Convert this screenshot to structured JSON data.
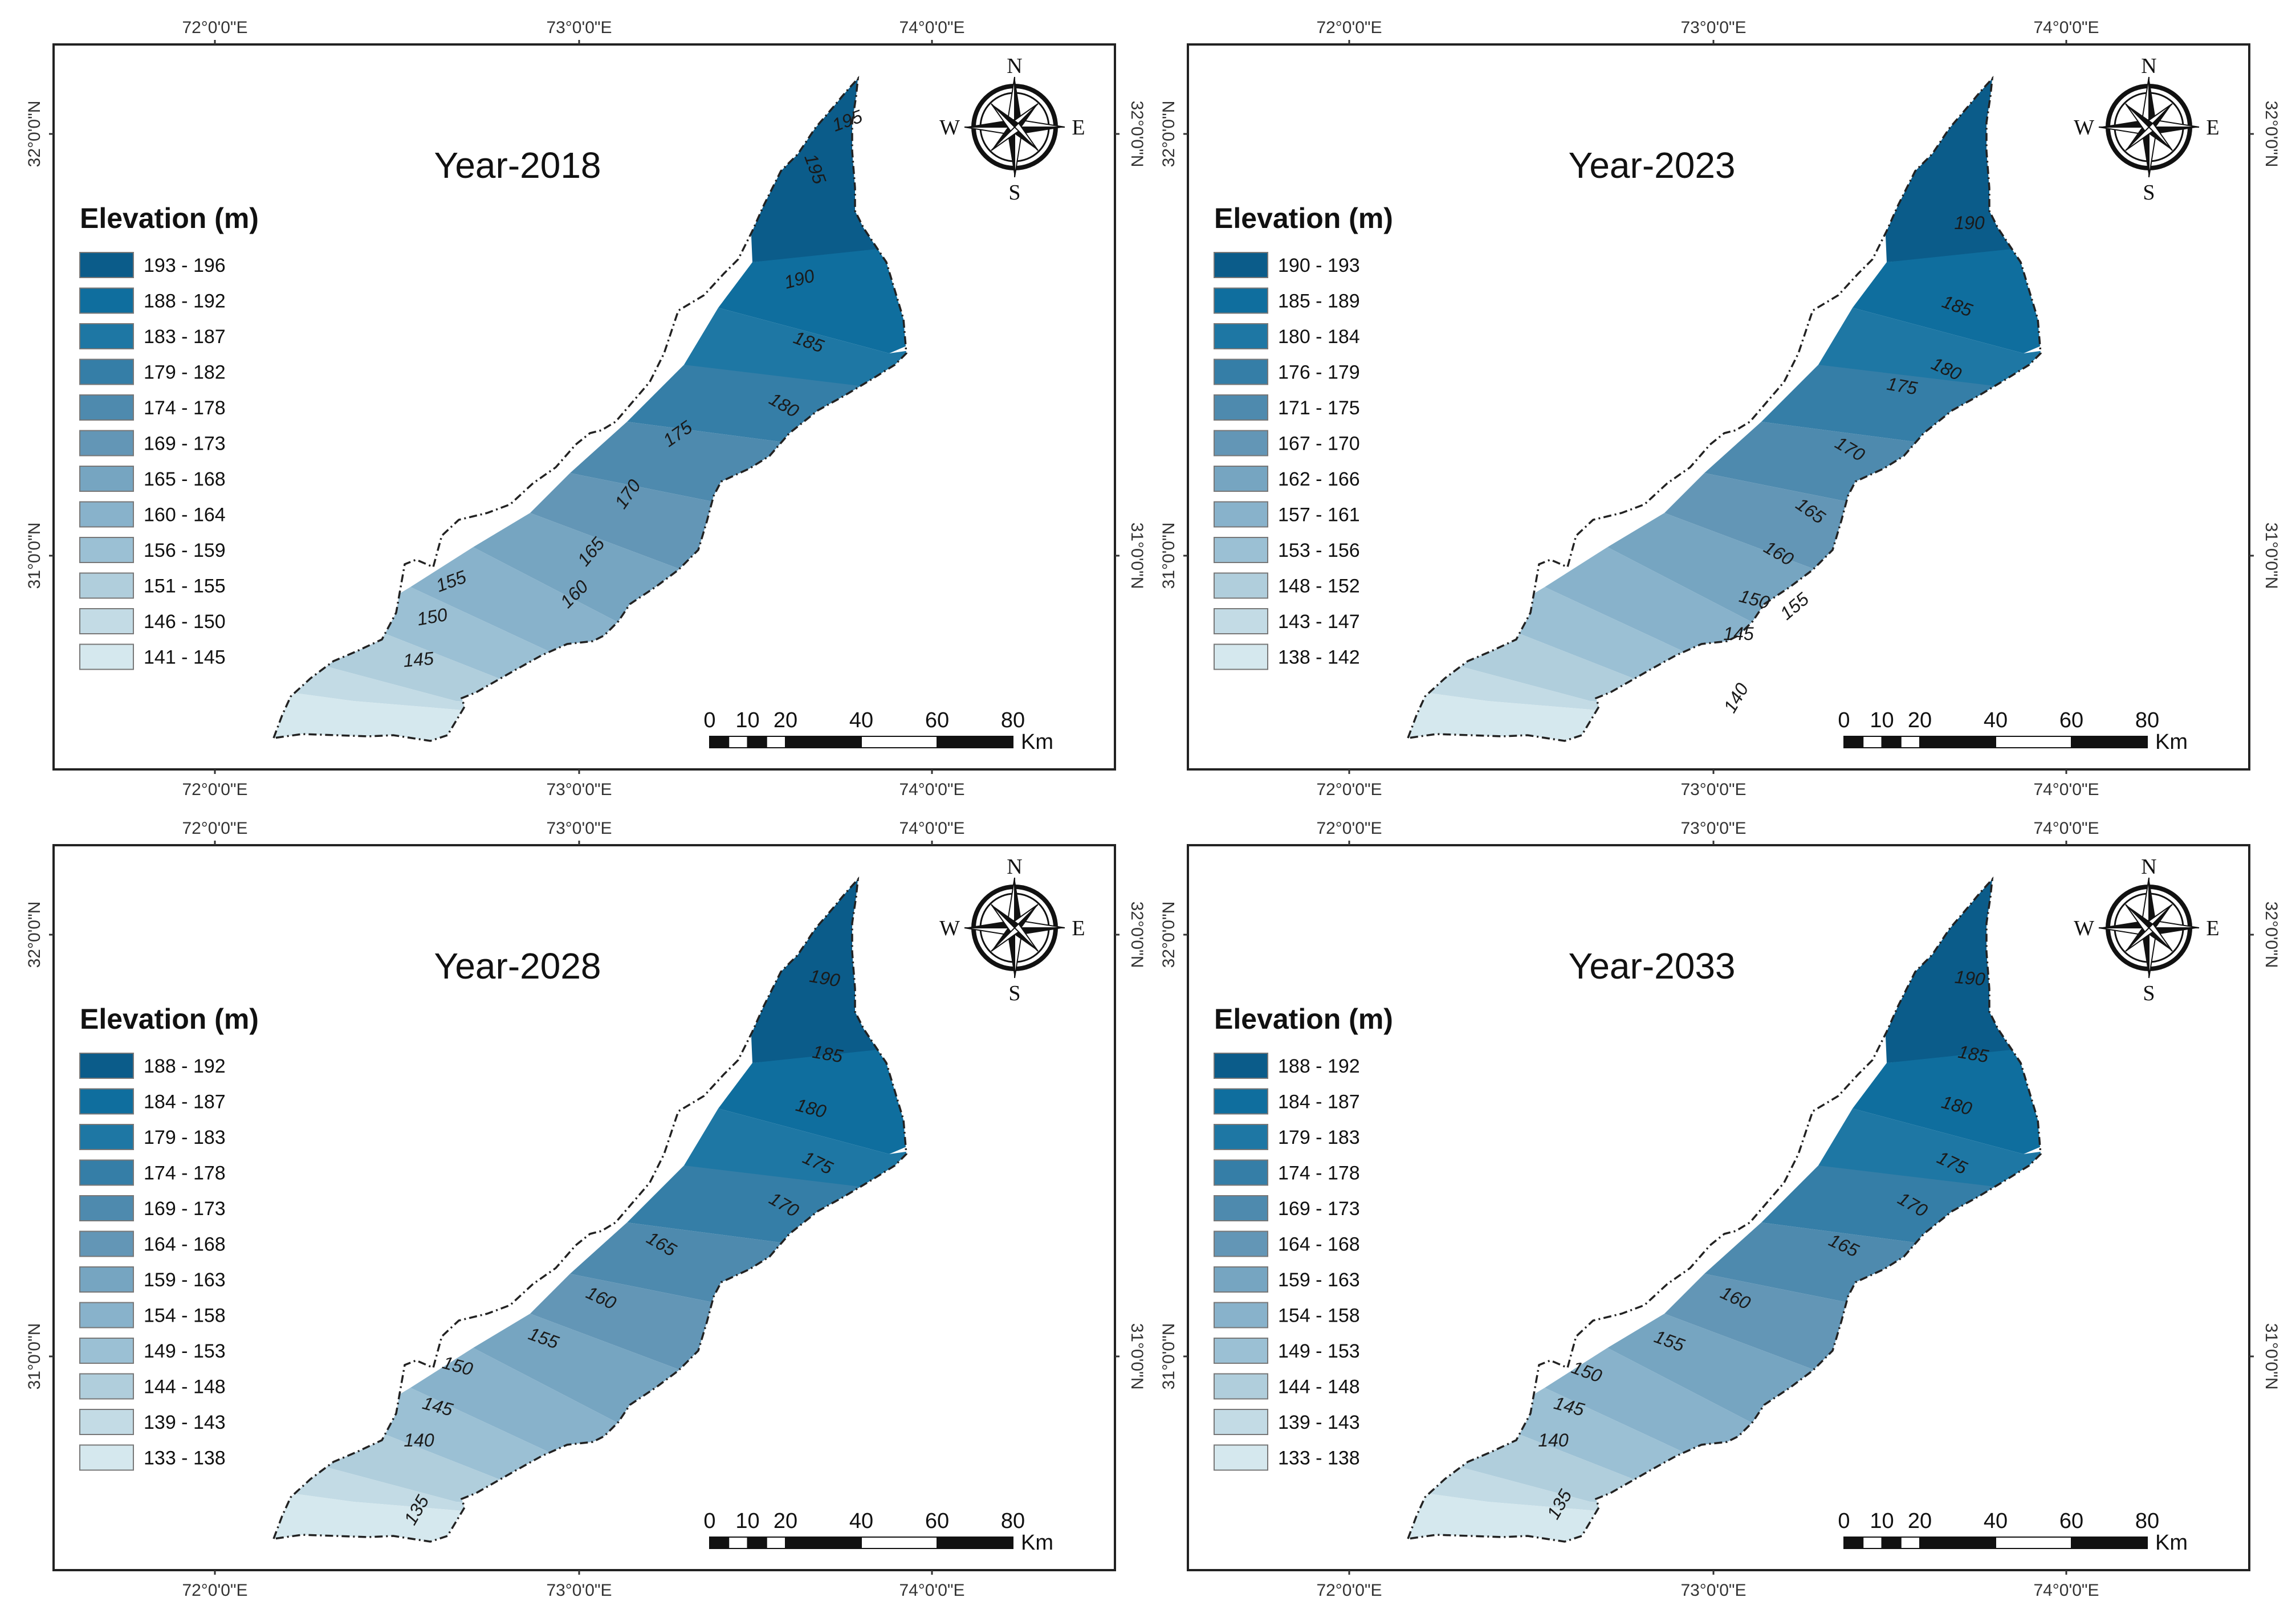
{
  "axis_labels": {
    "lon": [
      "72°0'0\"E",
      "73°0'0\"E",
      "74°0'0\"E"
    ],
    "lat": [
      "32°0'0\"N",
      "31°0'0\"N"
    ]
  },
  "compass": {
    "n": "N",
    "s": "S",
    "e": "E",
    "w": "W"
  },
  "scale_bar": {
    "ticks": [
      "0",
      "10",
      "20",
      "40",
      "60",
      "80"
    ],
    "unit": "Km"
  },
  "legend_title": "Elevation (m)",
  "panels": [
    {
      "title": "Year-2018",
      "legend": [
        "193 - 196",
        "188 - 192",
        "183 - 187",
        "179 - 182",
        "174 - 178",
        "169 - 173",
        "165 - 168",
        "160 - 164",
        "156 - 159",
        "151 - 155",
        "146 - 150",
        "141 - 145"
      ],
      "contours": [
        "195",
        "195",
        "190",
        "185",
        "180",
        "175",
        "170",
        "165",
        "160",
        "155",
        "150",
        "145"
      ]
    },
    {
      "title": "Year-2023",
      "legend": [
        "190 - 193",
        "185 - 189",
        "180 - 184",
        "176 - 179",
        "171 - 175",
        "167 - 170",
        "162 - 166",
        "157 - 161",
        "153 - 156",
        "148 - 152",
        "143 - 147",
        "138 - 142"
      ],
      "contours": [
        "190",
        "185",
        "180",
        "175",
        "170",
        "165",
        "160",
        "155",
        "150",
        "145",
        "140"
      ]
    },
    {
      "title": "Year-2028",
      "legend": [
        "188 - 192",
        "184 - 187",
        "179 - 183",
        "174 - 178",
        "169 - 173",
        "164 - 168",
        "159 - 163",
        "154 - 158",
        "149 - 153",
        "144 - 148",
        "139 - 143",
        "133 - 138"
      ],
      "contours": [
        "190",
        "185",
        "180",
        "175",
        "170",
        "165",
        "160",
        "155",
        "150",
        "145",
        "140",
        "135"
      ]
    },
    {
      "title": "Year-2033",
      "legend": [
        "188 - 192",
        "184 - 187",
        "179 - 183",
        "174 - 178",
        "169 - 173",
        "164 - 168",
        "159 - 163",
        "154 - 158",
        "149 - 153",
        "144 - 148",
        "139 - 143",
        "133 - 138"
      ],
      "contours": [
        "190",
        "185",
        "180",
        "175",
        "170",
        "165",
        "160",
        "155",
        "150",
        "145",
        "140",
        "135"
      ]
    }
  ],
  "colors": {
    "classes": [
      "#0b5c8a",
      "#0f6e9e",
      "#1e77a4",
      "#357ea7",
      "#4e8aae",
      "#6396b6",
      "#76a5c1",
      "#88b2cb",
      "#9bc0d4",
      "#b0cedc",
      "#c3dbe5",
      "#d5e8ee"
    ],
    "frame": "#222222"
  }
}
